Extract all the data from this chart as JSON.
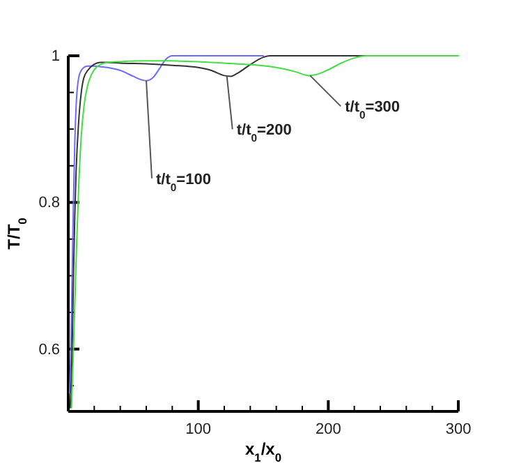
{
  "chart_data": {
    "type": "line",
    "xlabel": "x$_{1}$/x$_{0}$",
    "ylabel": "T/T$_{0}$",
    "xlim": [
      0,
      300
    ],
    "ylim": [
      0.515,
      1
    ],
    "xticks": [
      {
        "value": 20,
        "label": null
      },
      {
        "value": 40,
        "label": null
      },
      {
        "value": 60,
        "label": null
      },
      {
        "value": 80,
        "label": null
      },
      100,
      {
        "value": 120,
        "label": null
      },
      {
        "value": 140,
        "label": null
      },
      {
        "value": 160,
        "label": null
      },
      {
        "value": 180,
        "label": null
      },
      200,
      {
        "value": 220,
        "label": null
      },
      {
        "value": 240,
        "label": null
      },
      {
        "value": 260,
        "label": null
      },
      {
        "value": 280,
        "label": null
      },
      300
    ],
    "yticks": [
      {
        "value": 0.55,
        "label": null
      },
      0.6,
      {
        "value": 0.65,
        "label": null
      },
      {
        "value": 0.7,
        "label": null
      },
      {
        "value": 0.75,
        "label": null
      },
      0.8,
      {
        "value": 0.85,
        "label": null
      },
      {
        "value": 0.9,
        "label": null
      },
      {
        "value": 0.95,
        "label": null
      },
      1
    ],
    "grid": false,
    "series": [
      {
        "color": "#6b6bff",
        "x": [
          1,
          2,
          3,
          4,
          5,
          6,
          8,
          10,
          12,
          15,
          20,
          25,
          30,
          40,
          50,
          55,
          60,
          65,
          70,
          75,
          80,
          100,
          150
        ],
        "values": [
          0.54,
          0.6,
          0.7,
          0.8,
          0.88,
          0.93,
          0.97,
          0.98,
          0.984,
          0.986,
          0.986,
          0.985,
          0.984,
          0.98,
          0.972,
          0.968,
          0.966,
          0.97,
          0.982,
          0.995,
          1,
          1,
          1
        ]
      },
      {
        "color": "#333333",
        "x": [
          1.5,
          3,
          4,
          5,
          6,
          8,
          10,
          12,
          15,
          18,
          22,
          25,
          30,
          40,
          60,
          80,
          100,
          110,
          120,
          125,
          130,
          140,
          150,
          155,
          230
        ],
        "values": [
          0.52,
          0.6,
          0.7,
          0.78,
          0.84,
          0.91,
          0.95,
          0.97,
          0.98,
          0.986,
          0.99,
          0.991,
          0.991,
          0.99,
          0.989,
          0.987,
          0.984,
          0.98,
          0.973,
          0.972,
          0.976,
          0.988,
          0.998,
          1,
          1
        ]
      },
      {
        "color": "#44dd44",
        "x": [
          2.5,
          4,
          6,
          8,
          10,
          12,
          15,
          18,
          22,
          26,
          30,
          40,
          60,
          80,
          100,
          120,
          140,
          160,
          175,
          185,
          190,
          200,
          210,
          220,
          230,
          300
        ],
        "values": [
          0.52,
          0.6,
          0.72,
          0.82,
          0.89,
          0.93,
          0.96,
          0.975,
          0.985,
          0.989,
          0.991,
          0.992,
          0.993,
          0.993,
          0.992,
          0.99,
          0.988,
          0.984,
          0.978,
          0.973,
          0.974,
          0.981,
          0.99,
          0.997,
          1,
          1
        ]
      }
    ],
    "annotations": [
      {
        "text": "t/t$_{0}$=100",
        "x": 60,
        "y": 0.966
      },
      {
        "text": "t/t$_{0}$=200",
        "x": 122,
        "y": 0.972
      },
      {
        "text": "t/t$_{0}$=300",
        "x": 186,
        "y": 0.973
      }
    ]
  }
}
